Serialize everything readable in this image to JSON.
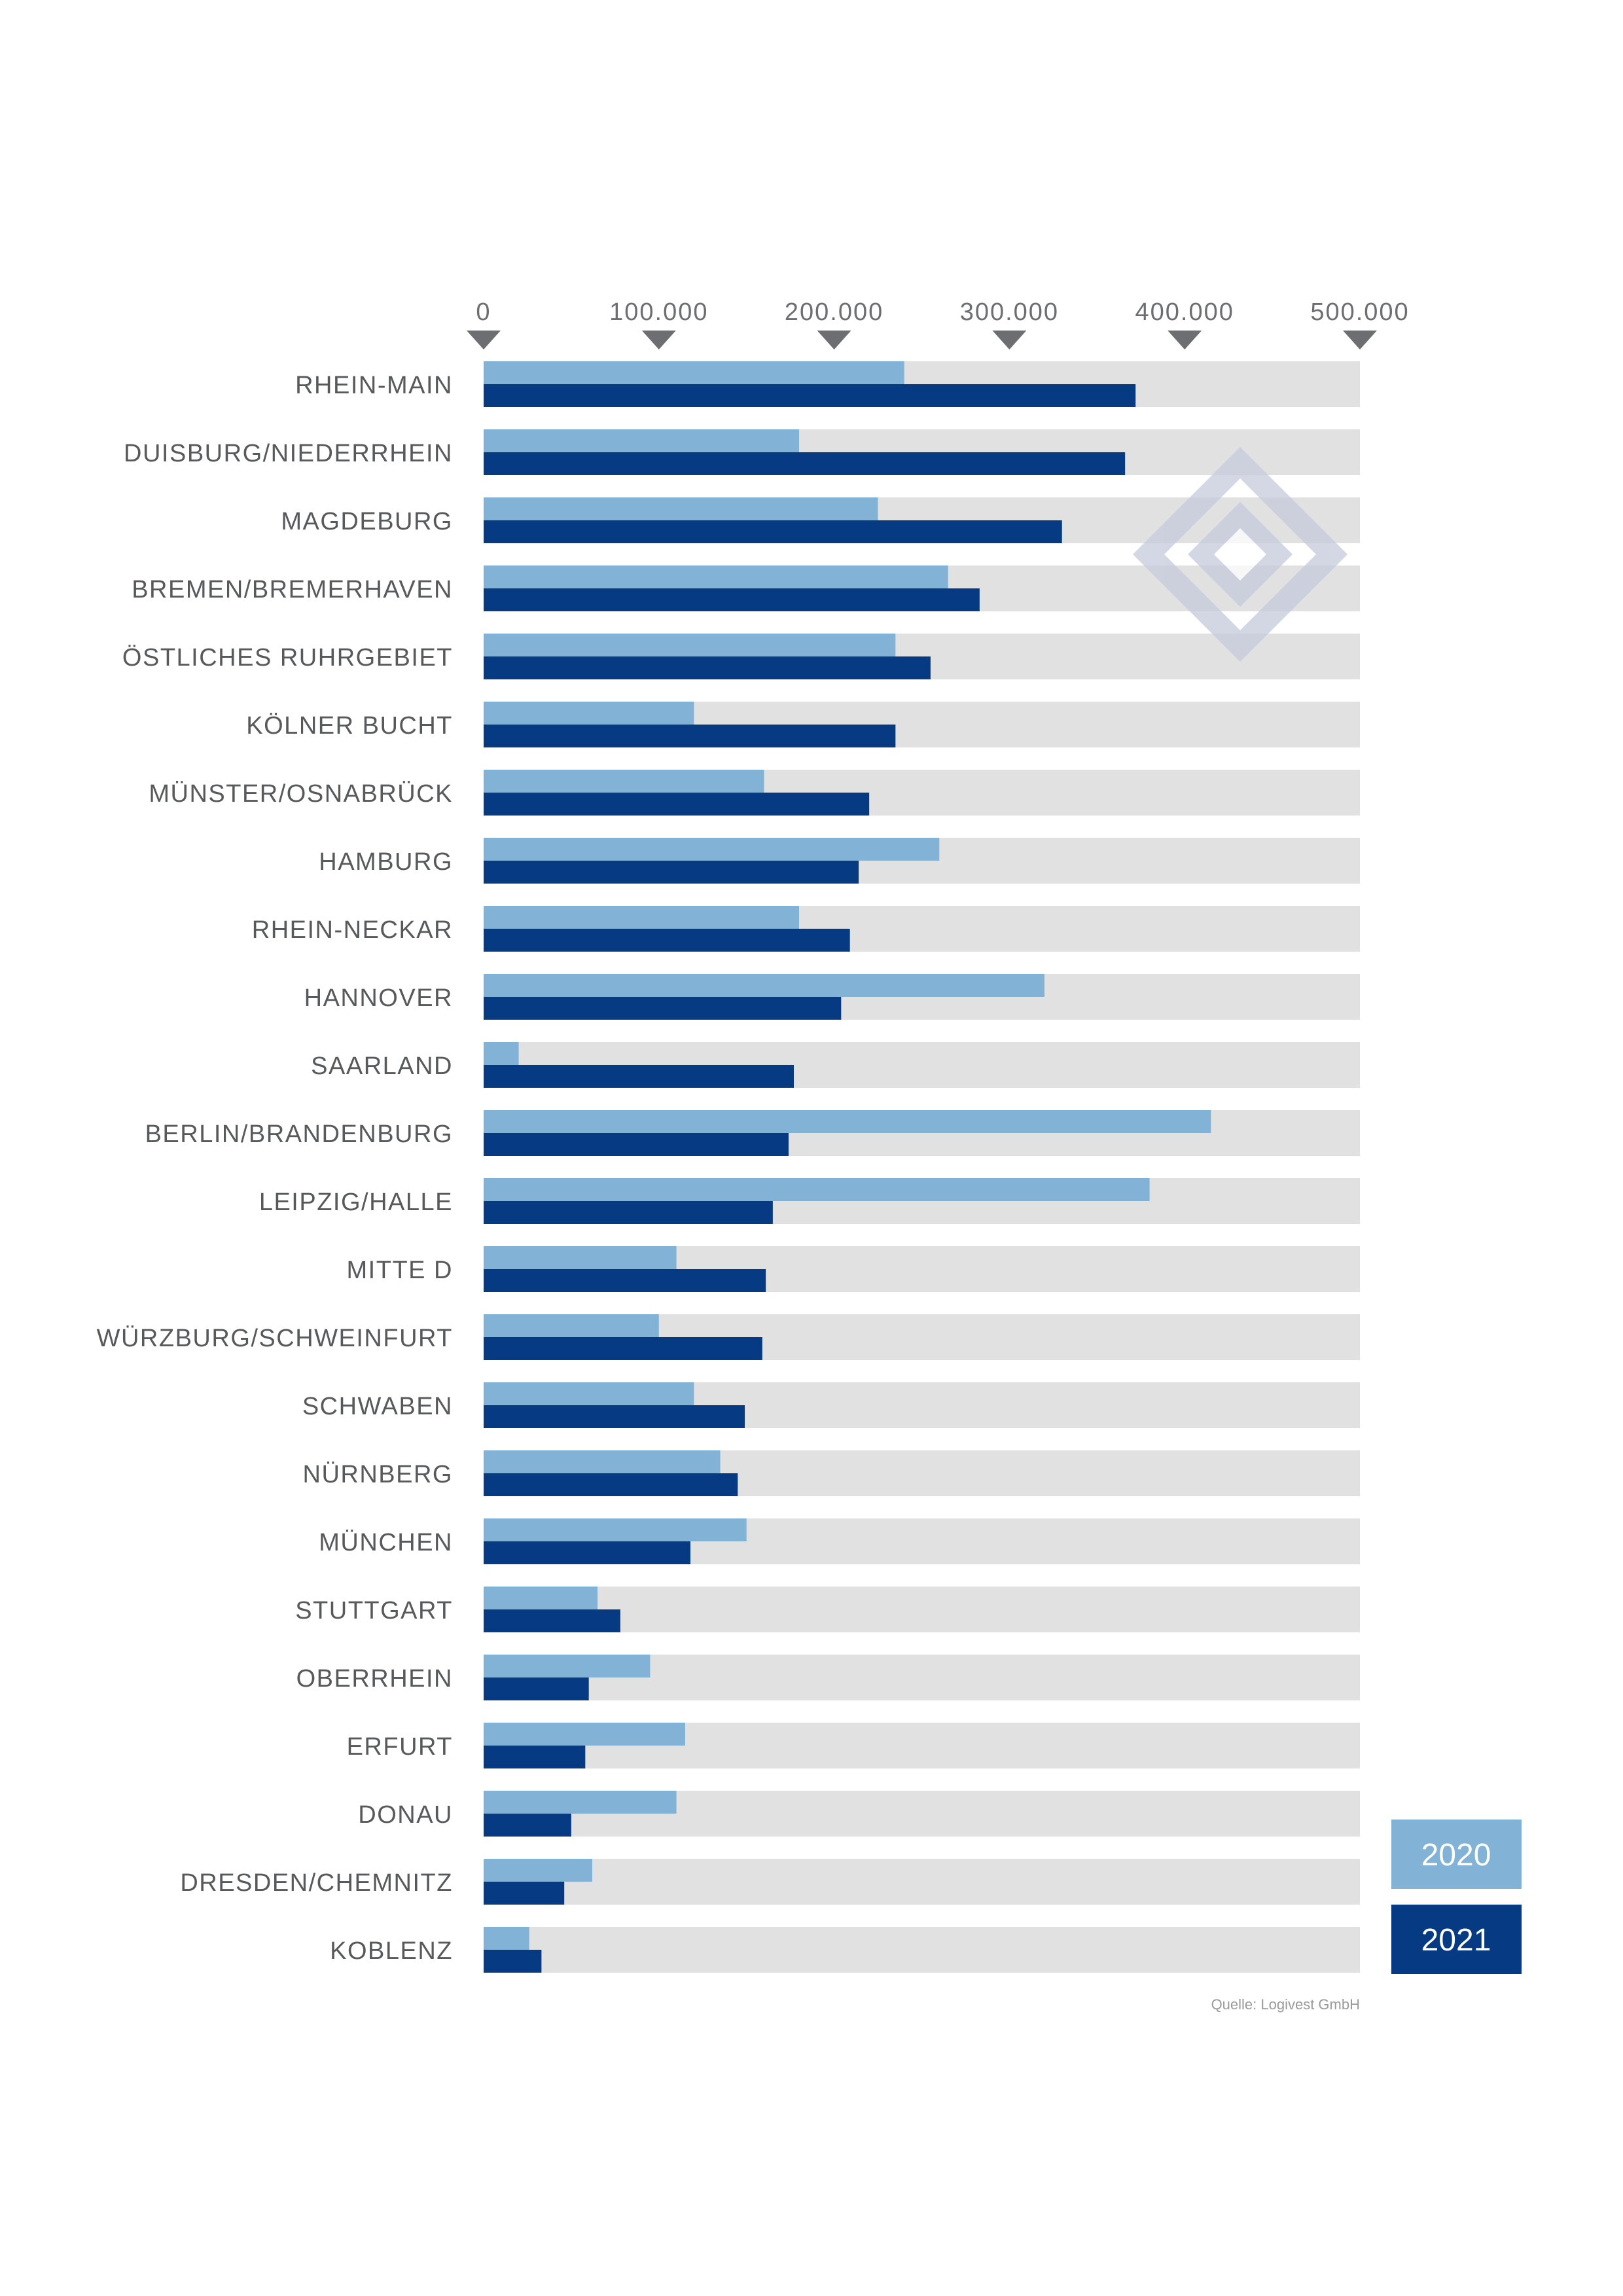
{
  "chart_data": {
    "type": "bar",
    "orientation": "horizontal",
    "categories": [
      "RHEIN-MAIN",
      "DUISBURG/NIEDERRHEIN",
      "MAGDEBURG",
      "BREMEN/BREMERHAVEN",
      "ÖSTLICHES RUHRGEBIET",
      "KÖLNER BUCHT",
      "MÜNSTER/OSNABRÜCK",
      "HAMBURG",
      "RHEIN-NECKAR",
      "HANNOVER",
      "SAARLAND",
      "BERLIN/BRANDENBURG",
      "LEIPZIG/HALLE",
      "MITTE D",
      "WÜRZBURG/SCHWEINFURT",
      "SCHWABEN",
      "NÜRNBERG",
      "MÜNCHEN",
      "STUTTGART",
      "OBERRHEIN",
      "ERFURT",
      "DONAU",
      "DRESDEN/CHEMNITZ",
      "KOBLENZ"
    ],
    "series": [
      {
        "name": "2020",
        "color": "#82b3d6",
        "values": [
          240000,
          180000,
          225000,
          265000,
          235000,
          120000,
          160000,
          260000,
          180000,
          320000,
          20000,
          415000,
          380000,
          110000,
          100000,
          120000,
          135000,
          150000,
          65000,
          95000,
          115000,
          110000,
          62000,
          26000
        ]
      },
      {
        "name": "2021",
        "color": "#063b84",
        "values": [
          372000,
          366000,
          330000,
          283000,
          255000,
          235000,
          220000,
          214000,
          209000,
          204000,
          177000,
          174000,
          165000,
          161000,
          159000,
          149000,
          145000,
          118000,
          78000,
          60000,
          58000,
          50000,
          46000,
          33000
        ]
      }
    ],
    "ticks": [
      "0",
      "100.000",
      "200.000",
      "300.000",
      "400.000",
      "500.000"
    ],
    "xlim": [
      0,
      500000
    ],
    "title": "",
    "xlabel": "",
    "ylabel": "",
    "track_color": "#e1e1e1",
    "tick_marker_color": "#6d6e71",
    "grid": false,
    "legend_position": "bottom-right"
  },
  "legend": {
    "items": [
      {
        "label": "2020",
        "color": "#82b3d6"
      },
      {
        "label": "2021",
        "color": "#063b84"
      }
    ]
  },
  "source": "Quelle: Logivest GmbH",
  "watermark": {
    "icon": "logivest-logo-icon",
    "color": "#c5cadb"
  }
}
